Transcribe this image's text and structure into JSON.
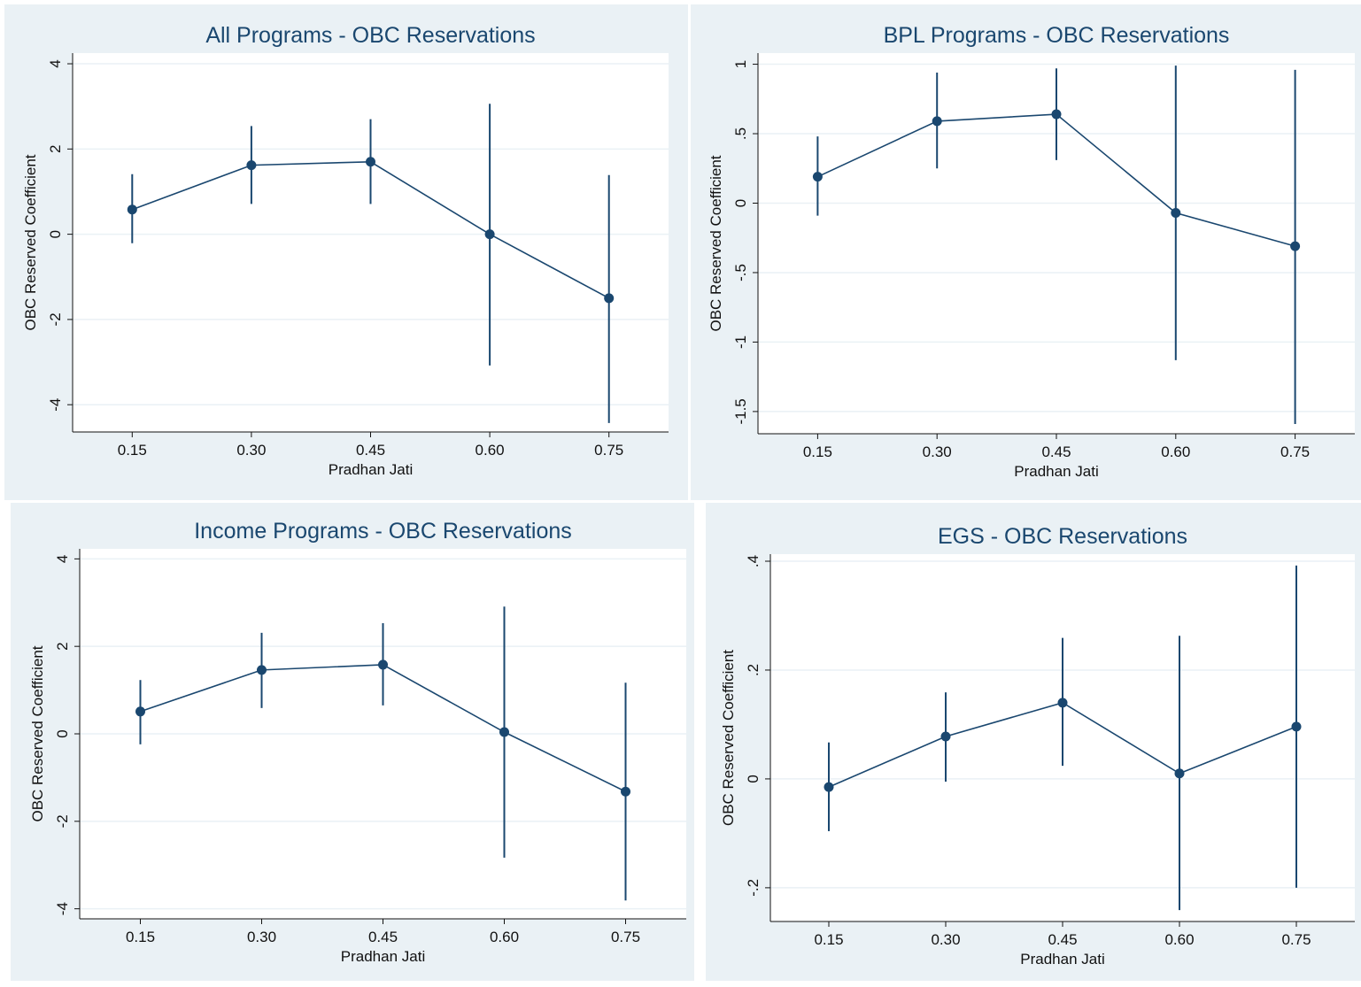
{
  "chart_data": [
    {
      "type": "line",
      "title": "All Programs - OBC Reservations",
      "x_label": "Pradhan Jati",
      "y_label": "OBC Reserved Coefficient",
      "categories": [
        "0.15",
        "0.30",
        "0.45",
        "0.60",
        "0.75"
      ],
      "values": [
        0.58,
        1.62,
        1.7,
        0,
        -1.5
      ],
      "ci_low": [
        -0.21,
        0.71,
        0.71,
        -3.08,
        -4.43
      ],
      "ci_high": [
        1.41,
        2.54,
        2.7,
        3.06,
        1.39
      ],
      "color": "#1a476f",
      "ylim": [
        -4.64,
        4.25
      ],
      "yticks": [
        -4,
        -2,
        0,
        2,
        4
      ],
      "grid": true
    },
    {
      "type": "line",
      "title": "BPL Programs - OBC Reservations",
      "x_label": "Pradhan Jati",
      "y_label": "OBC Reserved Coefficient",
      "categories": [
        "0.15",
        "0.30",
        "0.45",
        "0.60",
        "0.75"
      ],
      "values": [
        0.19,
        0.59,
        0.64,
        -0.07,
        -0.31
      ],
      "ci_low": [
        -0.09,
        0.25,
        0.31,
        -1.13,
        -1.59
      ],
      "ci_high": [
        0.48,
        0.94,
        0.97,
        0.99,
        0.96
      ],
      "color": "#1a476f",
      "ylim": [
        -1.66,
        1.08
      ],
      "yticks": [
        {
          "value": -1.5,
          "label": "-1.5"
        },
        -1,
        {
          "value": -0.5,
          "label": "-.5"
        },
        0,
        {
          "value": 0.5,
          "label": ".5"
        },
        1
      ],
      "grid": true
    },
    {
      "type": "line",
      "title": "Income Programs - OBC Reservations",
      "x_label": "Pradhan Jati",
      "y_label": "OBC Reserved Coefficient",
      "categories": [
        "0.15",
        "0.30",
        "0.45",
        "0.60",
        "0.75"
      ],
      "values": [
        0.51,
        1.46,
        1.58,
        0.04,
        -1.32
      ],
      "ci_low": [
        -0.24,
        0.59,
        0.65,
        -2.83,
        -3.81
      ],
      "ci_high": [
        1.23,
        2.31,
        2.53,
        2.91,
        1.17
      ],
      "color": "#1a476f",
      "ylim": [
        -4.23,
        4.23
      ],
      "yticks": [
        -4,
        -2,
        0,
        2,
        4
      ],
      "grid": true
    },
    {
      "type": "line",
      "title": "EGS - OBC Reservations",
      "x_label": "Pradhan Jati",
      "y_label": "OBC Reserved Coefficient",
      "categories": [
        "0.15",
        "0.30",
        "0.45",
        "0.60",
        "0.75"
      ],
      "values": [
        -0.015,
        0.078,
        0.14,
        0.01,
        0.096
      ],
      "ci_low": [
        -0.096,
        -0.005,
        0.024,
        -0.241,
        -0.2
      ],
      "ci_high": [
        0.067,
        0.159,
        0.259,
        0.263,
        0.392
      ],
      "color": "#1a476f",
      "ylim": [
        -0.262,
        0.413
      ],
      "yticks": [
        {
          "value": -0.2,
          "label": "-.2"
        },
        0,
        {
          "value": 0.2,
          "label": ".2"
        },
        {
          "value": 0.4,
          "label": ".4"
        }
      ],
      "grid": true
    }
  ]
}
